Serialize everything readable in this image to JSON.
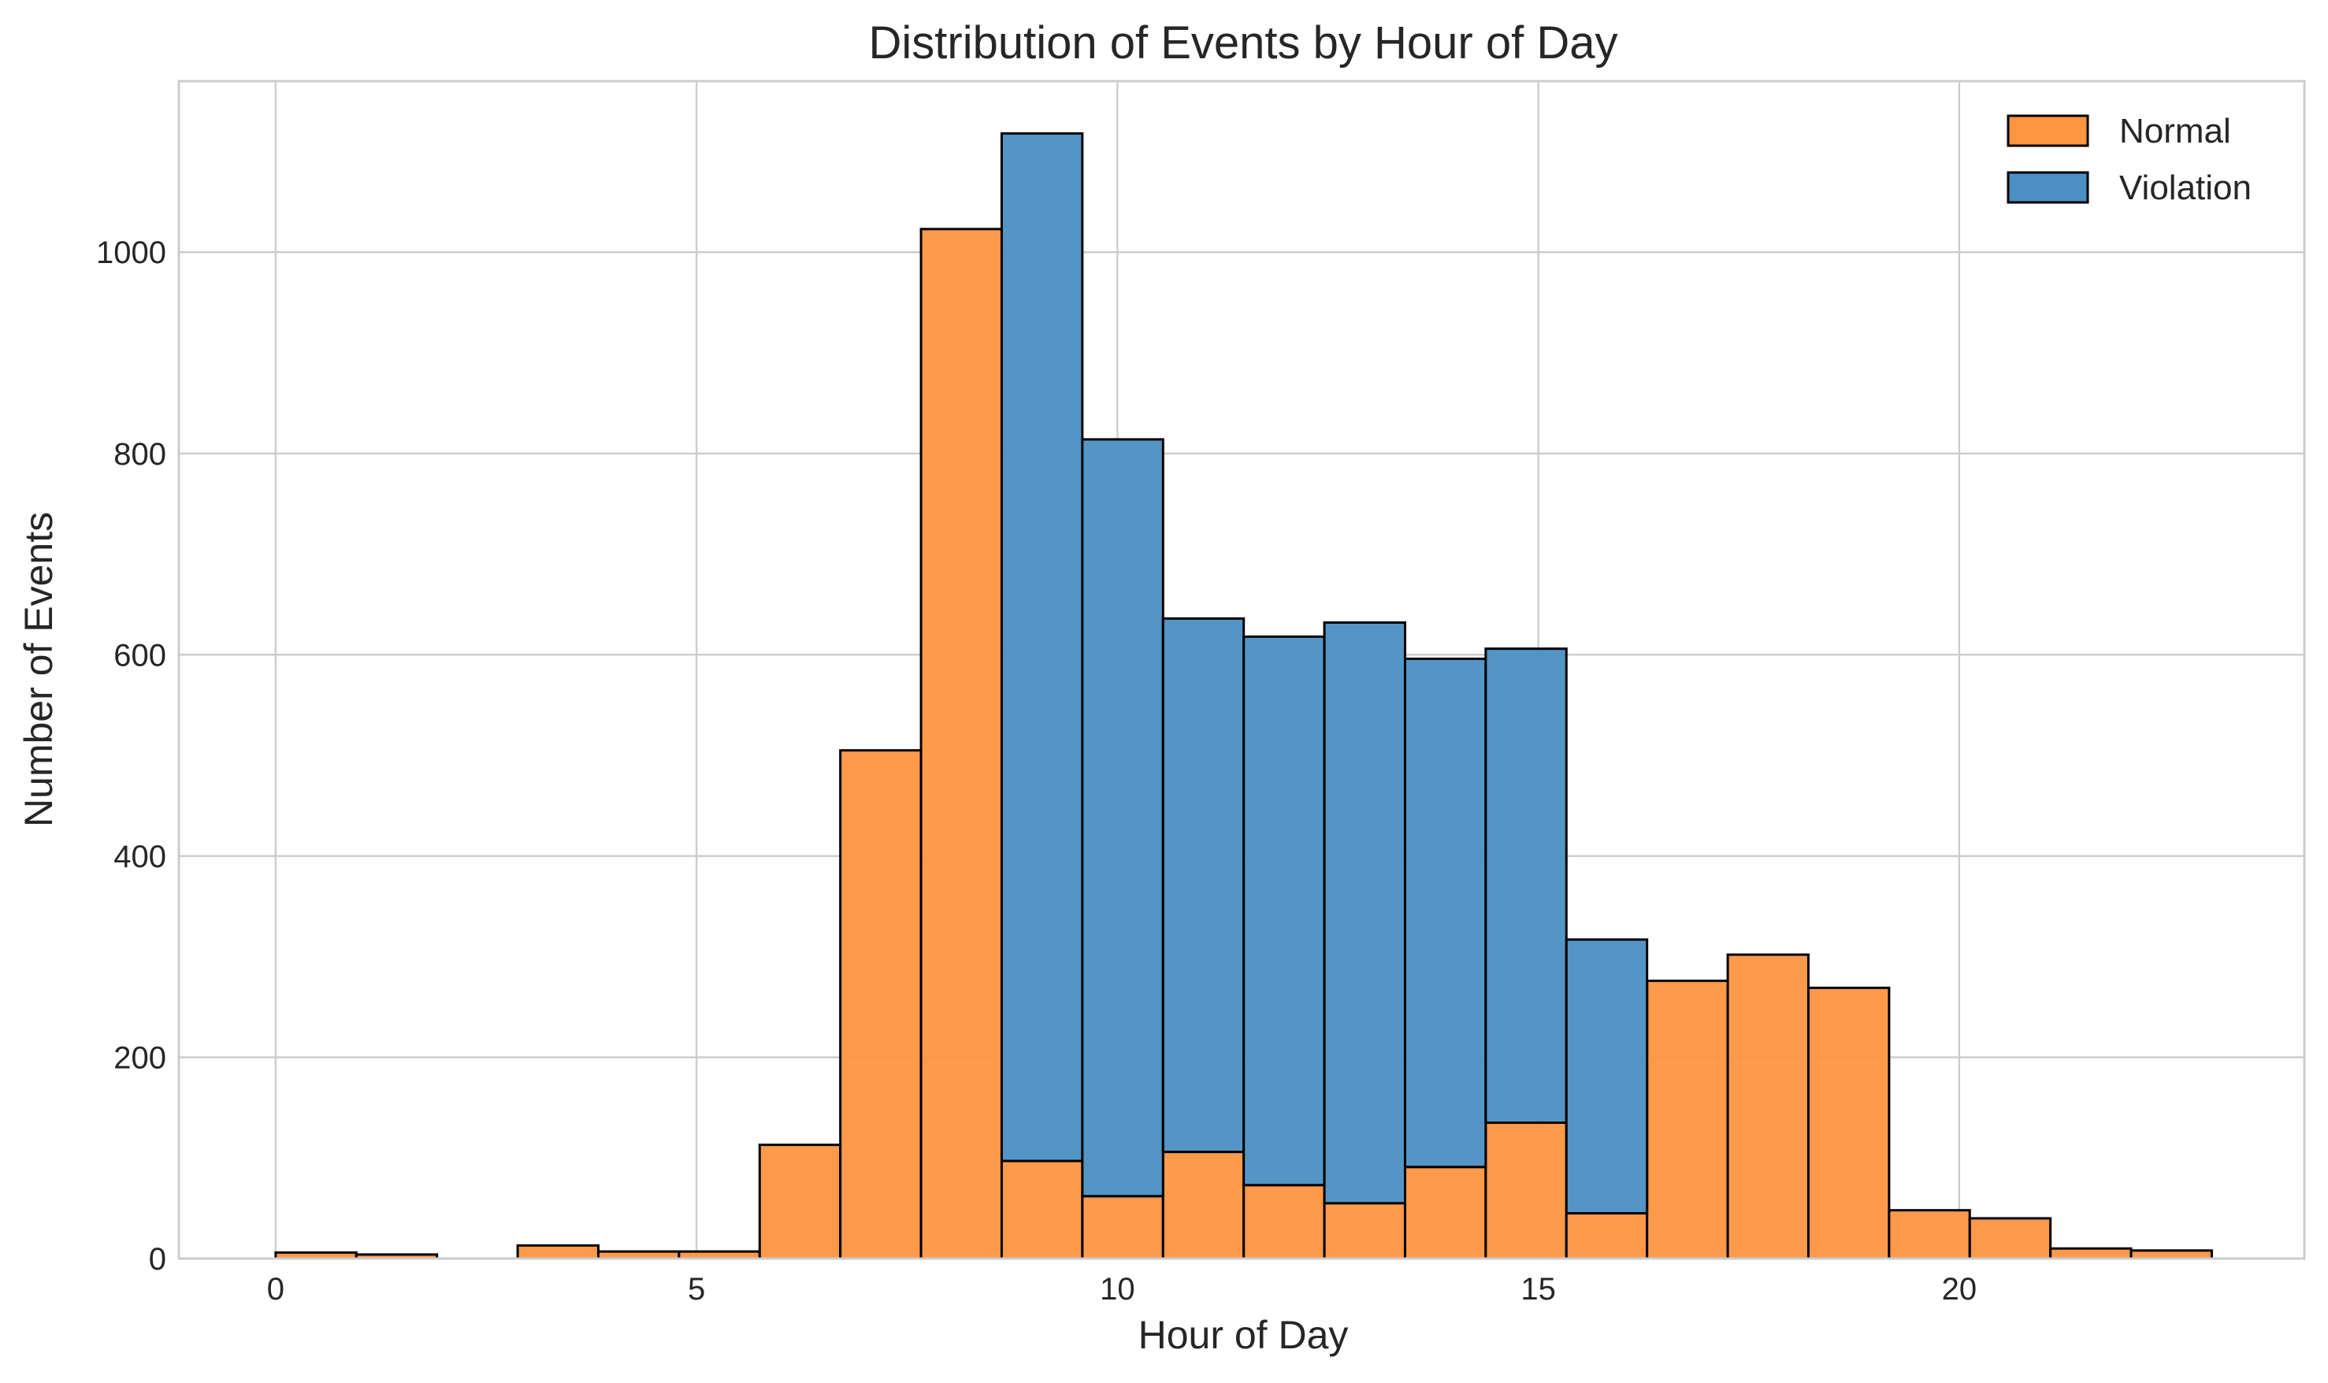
{
  "chart_data": {
    "type": "bar",
    "subtype": "stacked-histogram",
    "title": "Distribution of Events by Hour of Day",
    "xlabel": "Hour of Day",
    "ylabel": "Number of Events",
    "xlim": [
      -1.15,
      24.1
    ],
    "ylim": [
      0,
      1170
    ],
    "xticks": [
      0,
      5,
      10,
      15,
      20
    ],
    "yticks": [
      0,
      200,
      400,
      600,
      800,
      1000
    ],
    "grid": true,
    "legend_position": "top-right",
    "bin_edges": [
      0,
      0.9583,
      1.9167,
      2.875,
      3.8333,
      4.7917,
      5.75,
      6.7083,
      7.6667,
      8.625,
      9.5833,
      10.5417,
      11.5,
      12.4583,
      13.4167,
      14.375,
      15.3333,
      16.2917,
      17.25,
      18.2083,
      19.1667,
      20.125,
      21.0833,
      22.0417,
      23
    ],
    "series": [
      {
        "name": "Normal",
        "color": "#ff9540",
        "values": [
          6,
          4,
          0,
          13,
          7,
          7,
          113,
          505,
          1023,
          97,
          62,
          106,
          73,
          55,
          91,
          135,
          45,
          276,
          302,
          269,
          48,
          40,
          10,
          8
        ]
      },
      {
        "name": "Violation",
        "color": "#4c8fc3",
        "values": [
          0,
          0,
          0,
          0,
          0,
          0,
          0,
          0,
          0,
          1021,
          752,
          530,
          545,
          577,
          505,
          471,
          272,
          0,
          0,
          0,
          0,
          0,
          0,
          0
        ]
      }
    ]
  }
}
